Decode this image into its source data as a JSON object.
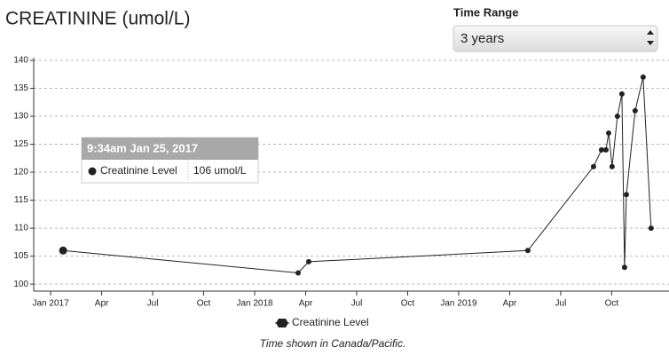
{
  "chart_data": {
    "type": "line",
    "title": "CREATININE (umol/L)",
    "controls": {
      "time_range_label": "Time Range",
      "time_range_value": "3 years"
    },
    "footnote": "Time shown in Canada/Pacific.",
    "x": [
      2017.061,
      2018.213,
      2018.265,
      2019.339,
      2019.661,
      2019.7,
      2019.722,
      2019.735,
      2019.752,
      2019.778,
      2019.8,
      2019.813,
      2019.822,
      2019.865,
      2019.904,
      2019.943
    ],
    "series": [
      {
        "name": "Creatinine Level",
        "color": "#222222",
        "values": [
          106,
          102,
          104,
          106,
          121,
          124,
          124,
          127,
          121,
          130,
          134,
          103,
          116,
          131,
          137,
          110
        ]
      }
    ],
    "xlim": [
      2016.917,
      2019.97
    ],
    "xticks": [
      {
        "value": 2017,
        "label": "Jan 2017"
      },
      {
        "value": 2017.25,
        "label": "Apr"
      },
      {
        "value": 2017.5,
        "label": "Jul"
      },
      {
        "value": 2017.75,
        "label": "Oct"
      },
      {
        "value": 2018,
        "label": "Jan 2018"
      },
      {
        "value": 2018.25,
        "label": "Apr"
      },
      {
        "value": 2018.5,
        "label": "Jul"
      },
      {
        "value": 2018.75,
        "label": "Oct"
      },
      {
        "value": 2019,
        "label": "Jan 2019"
      },
      {
        "value": 2019.25,
        "label": "Apr"
      },
      {
        "value": 2019.5,
        "label": "Jul"
      },
      {
        "value": 2019.75,
        "label": "Oct"
      }
    ],
    "ylim": [
      98.75,
      140
    ],
    "yticks": [
      100,
      105,
      110,
      115,
      120,
      125,
      130,
      135,
      140
    ],
    "grid": true,
    "legend": "bottom",
    "tooltip": {
      "title": "9:34am Jan 25, 2017",
      "value_label": "106 umol/L"
    }
  }
}
